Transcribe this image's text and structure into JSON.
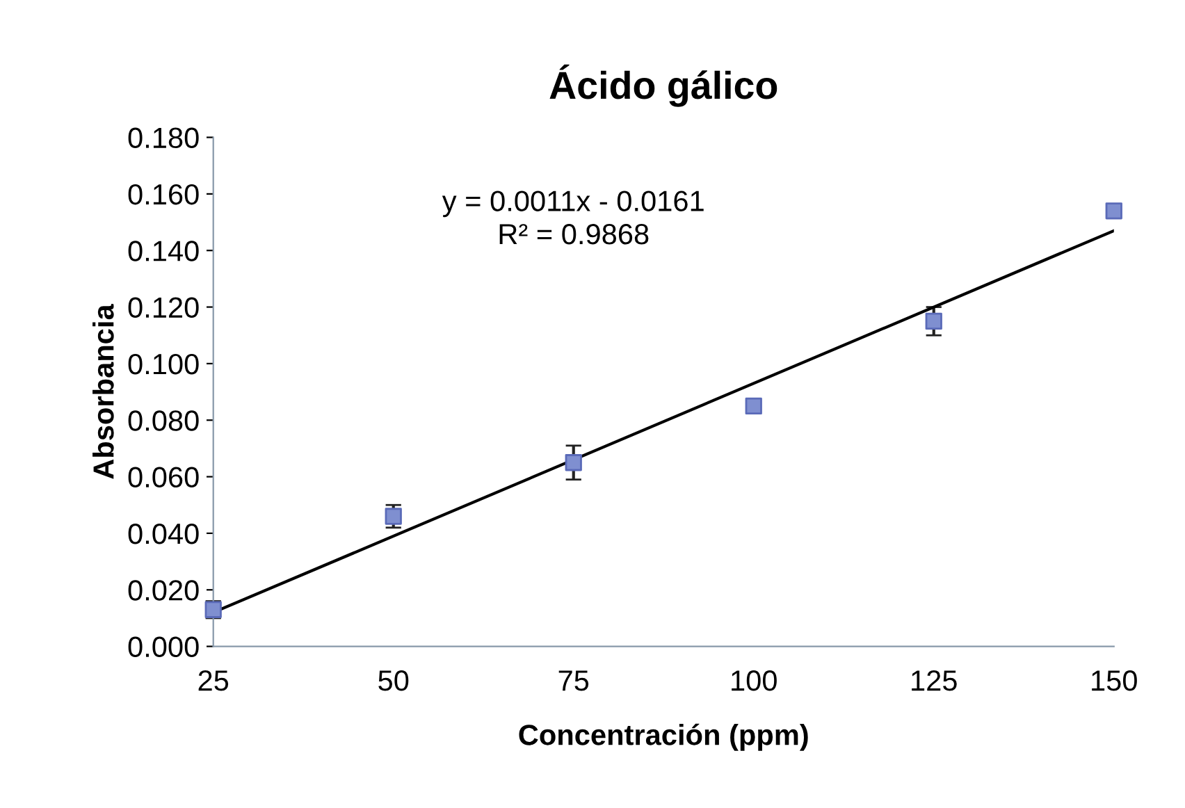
{
  "chart_data": {
    "type": "scatter",
    "title": "Ácido gálico",
    "xlabel": "Concentración (ppm)",
    "ylabel": "Absorbancia",
    "x": [
      25,
      50,
      75,
      100,
      125,
      150
    ],
    "series": [
      {
        "color": "#7f8fd0",
        "values": [
          0.013,
          0.046,
          0.065,
          0.085,
          0.115,
          0.154
        ],
        "errors": [
          0.003,
          0.004,
          0.006,
          null,
          0.005,
          null
        ],
        "marker": "square"
      },
      {
        "type": "line",
        "color": "#000000",
        "x": [
          25,
          150
        ],
        "values": [
          0.012,
          0.147
        ],
        "marker": "none",
        "line_style": "solid"
      }
    ],
    "annotations": [
      "y = 0.0011x - 0.0161",
      "R² = 0.9868"
    ],
    "xlim": [
      25,
      150
    ],
    "xticks": [
      25,
      50,
      75,
      100,
      125,
      150
    ],
    "ylim": [
      0,
      0.18
    ],
    "yticks": [
      {
        "value": 0,
        "label": "0.000"
      },
      {
        "value": 0.02,
        "label": "0.020"
      },
      {
        "value": 0.04,
        "label": "0.040"
      },
      {
        "value": 0.06,
        "label": "0.060"
      },
      {
        "value": 0.08,
        "label": "0.080"
      },
      {
        "value": 0.1,
        "label": "0.100"
      },
      {
        "value": 0.12,
        "label": "0.120"
      },
      {
        "value": 0.14,
        "label": "0.140"
      },
      {
        "value": 0.16,
        "label": "0.160"
      },
      {
        "value": 0.18,
        "label": "0.180"
      }
    ],
    "grid": false,
    "legend": false
  }
}
